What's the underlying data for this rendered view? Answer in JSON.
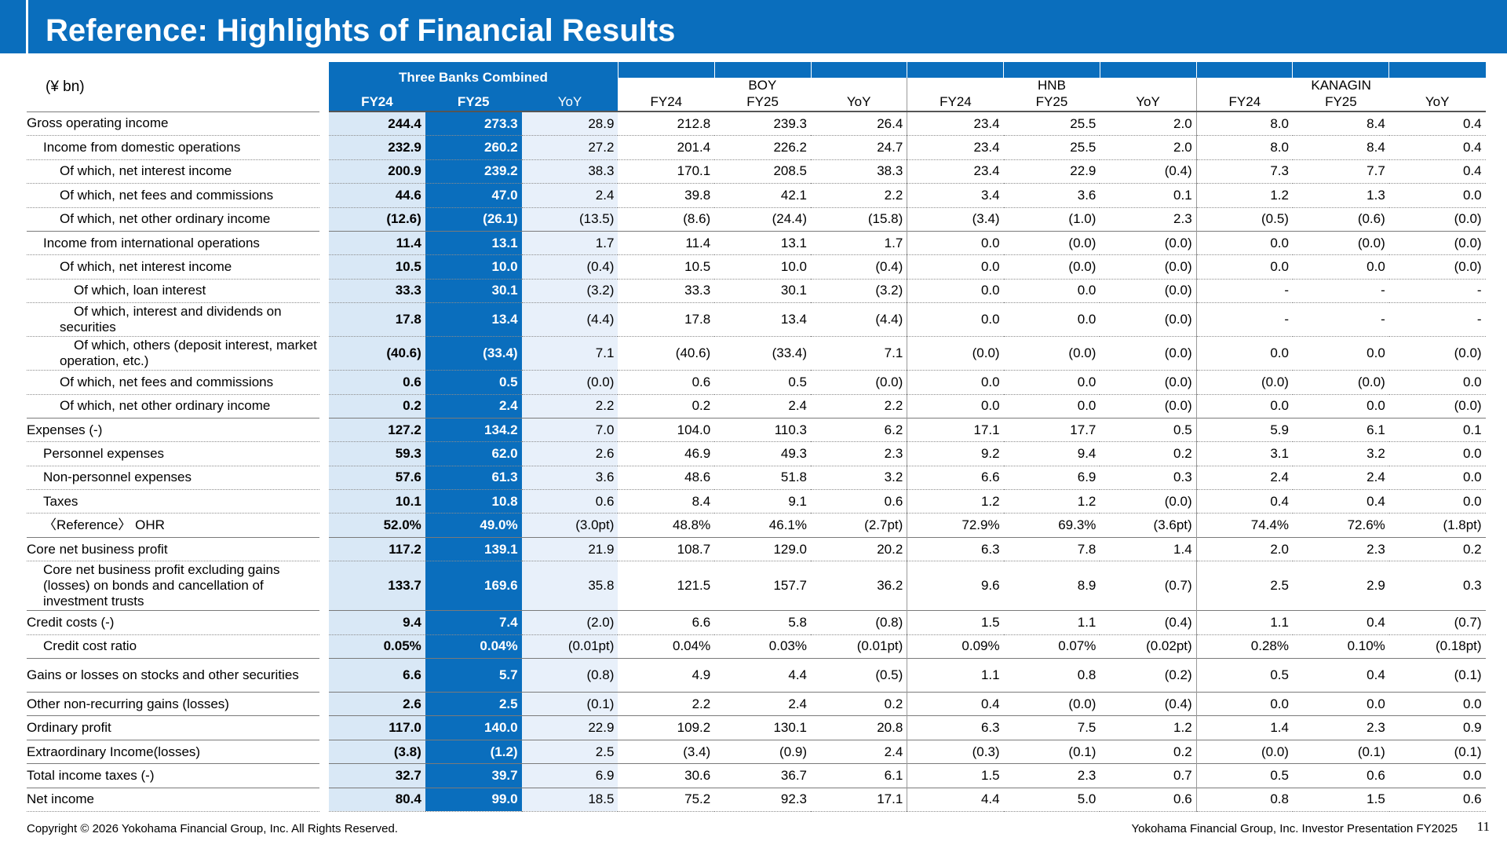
{
  "title": "Reference: Highlights of Financial Results",
  "unit": "(¥ bn)",
  "groups": {
    "combined": "Three Banks Combined",
    "boy": "BOY",
    "hnb": "HNB",
    "kanagin": "KANAGIN"
  },
  "col_headers": [
    "FY24",
    "FY25",
    "YoY"
  ],
  "rows": [
    {
      "label": "Gross operating income",
      "v": [
        "244.4",
        "273.3",
        "28.9",
        "212.8",
        "239.3",
        "26.4",
        "23.4",
        "25.5",
        "2.0",
        "8.0",
        "8.4",
        "0.4"
      ]
    },
    {
      "label": "Income from domestic operations",
      "v": [
        "232.9",
        "260.2",
        "27.2",
        "201.4",
        "226.2",
        "24.7",
        "23.4",
        "25.5",
        "2.0",
        "8.0",
        "8.4",
        "0.4"
      ]
    },
    {
      "label": "Of which, net interest income",
      "v": [
        "200.9",
        "239.2",
        "38.3",
        "170.1",
        "208.5",
        "38.3",
        "23.4",
        "22.9",
        "(0.4)",
        "7.3",
        "7.7",
        "0.4"
      ]
    },
    {
      "label": "Of which, net fees and commissions",
      "v": [
        "44.6",
        "47.0",
        "2.4",
        "39.8",
        "42.1",
        "2.2",
        "3.4",
        "3.6",
        "0.1",
        "1.2",
        "1.3",
        "0.0"
      ]
    },
    {
      "label": "Of which, net other ordinary income",
      "v": [
        "(12.6)",
        "(26.1)",
        "(13.5)",
        "(8.6)",
        "(24.4)",
        "(15.8)",
        "(3.4)",
        "(1.0)",
        "2.3",
        "(0.5)",
        "(0.6)",
        "(0.0)"
      ]
    },
    {
      "label": "Income from international operations",
      "v": [
        "11.4",
        "13.1",
        "1.7",
        "11.4",
        "13.1",
        "1.7",
        "0.0",
        "(0.0)",
        "(0.0)",
        "0.0",
        "(0.0)",
        "(0.0)"
      ]
    },
    {
      "label": "Of which, net interest income",
      "v": [
        "10.5",
        "10.0",
        "(0.4)",
        "10.5",
        "10.0",
        "(0.4)",
        "0.0",
        "(0.0)",
        "(0.0)",
        "0.0",
        "0.0",
        "(0.0)"
      ]
    },
    {
      "label": "Of which, loan interest",
      "v": [
        "33.3",
        "30.1",
        "(3.2)",
        "33.3",
        "30.1",
        "(3.2)",
        "0.0",
        "0.0",
        "(0.0)",
        "-",
        "-",
        "-"
      ]
    },
    {
      "label": "Of which, interest and dividends on securities",
      "v": [
        "17.8",
        "13.4",
        "(4.4)",
        "17.8",
        "13.4",
        "(4.4)",
        "0.0",
        "0.0",
        "(0.0)",
        "-",
        "-",
        "-"
      ]
    },
    {
      "label": "Of which, others (deposit interest, market operation, etc.)",
      "v": [
        "(40.6)",
        "(33.4)",
        "7.1",
        "(40.6)",
        "(33.4)",
        "7.1",
        "(0.0)",
        "(0.0)",
        "(0.0)",
        "0.0",
        "0.0",
        "(0.0)"
      ]
    },
    {
      "label": "Of which, net fees and commissions",
      "v": [
        "0.6",
        "0.5",
        "(0.0)",
        "0.6",
        "0.5",
        "(0.0)",
        "0.0",
        "0.0",
        "(0.0)",
        "(0.0)",
        "(0.0)",
        "0.0"
      ]
    },
    {
      "label": "Of which, net other ordinary income",
      "v": [
        "0.2",
        "2.4",
        "2.2",
        "0.2",
        "2.4",
        "2.2",
        "0.0",
        "0.0",
        "(0.0)",
        "0.0",
        "0.0",
        "(0.0)"
      ]
    },
    {
      "label": "Expenses (-)",
      "v": [
        "127.2",
        "134.2",
        "7.0",
        "104.0",
        "110.3",
        "6.2",
        "17.1",
        "17.7",
        "0.5",
        "5.9",
        "6.1",
        "0.1"
      ]
    },
    {
      "label": "Personnel expenses",
      "v": [
        "59.3",
        "62.0",
        "2.6",
        "46.9",
        "49.3",
        "2.3",
        "9.2",
        "9.4",
        "0.2",
        "3.1",
        "3.2",
        "0.0"
      ]
    },
    {
      "label": "Non-personnel expenses",
      "v": [
        "57.6",
        "61.3",
        "3.6",
        "48.6",
        "51.8",
        "3.2",
        "6.6",
        "6.9",
        "0.3",
        "2.4",
        "2.4",
        "0.0"
      ]
    },
    {
      "label": "Taxes",
      "v": [
        "10.1",
        "10.8",
        "0.6",
        "8.4",
        "9.1",
        "0.6",
        "1.2",
        "1.2",
        "(0.0)",
        "0.4",
        "0.4",
        "0.0"
      ]
    },
    {
      "label": "〈Reference〉 OHR",
      "v": [
        "52.0%",
        "49.0%",
        "(3.0pt)",
        "48.8%",
        "46.1%",
        "(2.7pt)",
        "72.9%",
        "69.3%",
        "(3.6pt)",
        "74.4%",
        "72.6%",
        "(1.8pt)"
      ]
    },
    {
      "label": "Core net business profit",
      "v": [
        "117.2",
        "139.1",
        "21.9",
        "108.7",
        "129.0",
        "20.2",
        "6.3",
        "7.8",
        "1.4",
        "2.0",
        "2.3",
        "0.2"
      ]
    },
    {
      "label": "Core net business profit excluding gains (losses) on bonds and cancellation of investment trusts",
      "v": [
        "133.7",
        "169.6",
        "35.8",
        "121.5",
        "157.7",
        "36.2",
        "9.6",
        "8.9",
        "(0.7)",
        "2.5",
        "2.9",
        "0.3"
      ]
    },
    {
      "label": "Credit costs (-)",
      "v": [
        "9.4",
        "7.4",
        "(2.0)",
        "6.6",
        "5.8",
        "(0.8)",
        "1.5",
        "1.1",
        "(0.4)",
        "1.1",
        "0.4",
        "(0.7)"
      ]
    },
    {
      "label": "Credit cost ratio",
      "v": [
        "0.05%",
        "0.04%",
        "(0.01pt)",
        "0.04%",
        "0.03%",
        "(0.01pt)",
        "0.09%",
        "0.07%",
        "(0.02pt)",
        "0.28%",
        "0.10%",
        "(0.18pt)"
      ]
    },
    {
      "label": "Gains or losses on stocks and other securities",
      "v": [
        "6.6",
        "5.7",
        "(0.8)",
        "4.9",
        "4.4",
        "(0.5)",
        "1.1",
        "0.8",
        "(0.2)",
        "0.5",
        "0.4",
        "(0.1)"
      ]
    },
    {
      "label": "Other non-recurring gains (losses)",
      "v": [
        "2.6",
        "2.5",
        "(0.1)",
        "2.2",
        "2.4",
        "0.2",
        "0.4",
        "(0.0)",
        "(0.4)",
        "0.0",
        "0.0",
        "0.0"
      ]
    },
    {
      "label": "Ordinary profit",
      "v": [
        "117.0",
        "140.0",
        "22.9",
        "109.2",
        "130.1",
        "20.8",
        "6.3",
        "7.5",
        "1.2",
        "1.4",
        "2.3",
        "0.9"
      ]
    },
    {
      "label": "Extraordinary Income(losses)",
      "v": [
        "(3.8)",
        "(1.2)",
        "2.5",
        "(3.4)",
        "(0.9)",
        "2.4",
        "(0.3)",
        "(0.1)",
        "0.2",
        "(0.0)",
        "(0.1)",
        "(0.1)"
      ]
    },
    {
      "label": "Total income taxes (-)",
      "v": [
        "32.7",
        "39.7",
        "6.9",
        "30.6",
        "36.7",
        "6.1",
        "1.5",
        "2.3",
        "0.7",
        "0.5",
        "0.6",
        "0.0"
      ]
    },
    {
      "label": "Net income",
      "v": [
        "80.4",
        "99.0",
        "18.5",
        "75.2",
        "92.3",
        "17.1",
        "4.4",
        "5.0",
        "0.6",
        "0.8",
        "1.5",
        "0.6"
      ]
    }
  ],
  "footer": {
    "copyright": "Copyright © 2026 Yokohama Financial Group, Inc. All Rights Reserved.",
    "presentation": "Yokohama Financial Group, Inc. Investor Presentation FY2025",
    "page": "11"
  }
}
